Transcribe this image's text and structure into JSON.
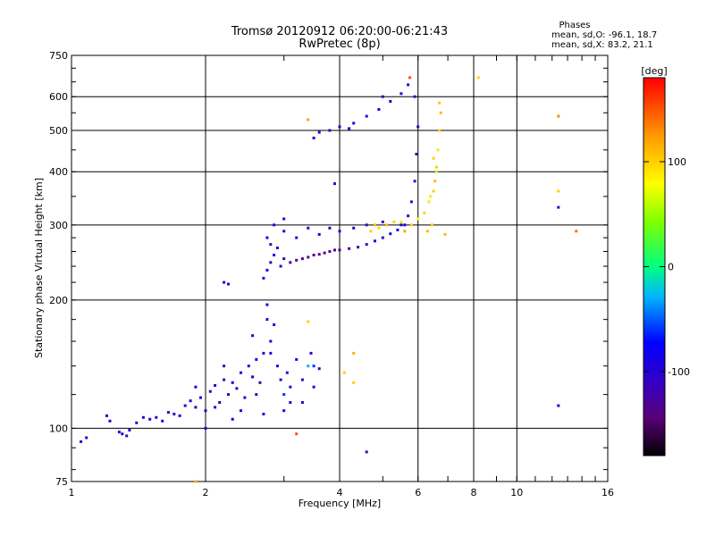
{
  "header": {
    "title_line1": "Tromsø 20120912 06:20:00-06:21:43",
    "title_line2": "RwPretec (8p)"
  },
  "stats": {
    "heading": "Phases",
    "line_o": "mean, sd,O: -96.1, 18.7",
    "line_x": "mean, sd,X: 83.2, 21.1"
  },
  "colorbar": {
    "unit": "[deg]",
    "ticks": [
      {
        "value": 100,
        "label": "100"
      },
      {
        "value": 0,
        "label": "0"
      },
      {
        "value": -100,
        "label": "-100"
      }
    ],
    "min": -180,
    "max": 180
  },
  "chart_data": {
    "type": "scatter",
    "title": "Tromsø 20120912 06:20:00-06:21:43",
    "subtitle": "RwPretec (8p)",
    "xlabel": "Frequency [MHz]",
    "ylabel": "Stationary phase Virtual Height [km]",
    "xscale": "log",
    "yscale": "log",
    "xlim": [
      1,
      16
    ],
    "ylim": [
      75,
      750
    ],
    "grid": true,
    "x_ticks": [
      {
        "value": 1,
        "label": "1"
      },
      {
        "value": 2,
        "label": "2"
      },
      {
        "value": 4,
        "label": "4"
      },
      {
        "value": 6,
        "label": "6"
      },
      {
        "value": 8,
        "label": "8"
      },
      {
        "value": 10,
        "label": "10"
      },
      {
        "value": 16,
        "label": "16"
      }
    ],
    "y_ticks": [
      {
        "value": 75,
        "label": "75"
      },
      {
        "value": 100,
        "label": "100"
      },
      {
        "value": 200,
        "label": "200"
      },
      {
        "value": 300,
        "label": "300"
      },
      {
        "value": 400,
        "label": "400"
      },
      {
        "value": 500,
        "label": "500"
      },
      {
        "value": 600,
        "label": "600"
      },
      {
        "value": 750,
        "label": "750"
      }
    ],
    "color_axis": {
      "label": "[deg]",
      "range": [
        -180,
        180
      ]
    },
    "series": [
      {
        "points_f_h_phase": [
          [
            1.05,
            93,
            -110
          ],
          [
            1.08,
            95,
            -100
          ],
          [
            1.2,
            107,
            -105
          ],
          [
            1.22,
            104,
            -95
          ],
          [
            1.28,
            98,
            -110
          ],
          [
            1.3,
            97,
            -100
          ],
          [
            1.33,
            96,
            -115
          ],
          [
            1.35,
            99,
            -105
          ],
          [
            1.4,
            103,
            -100
          ],
          [
            1.45,
            106,
            -110
          ],
          [
            1.5,
            105,
            -95
          ],
          [
            1.55,
            106,
            -100
          ],
          [
            1.6,
            104,
            -105
          ],
          [
            1.65,
            109,
            -110
          ],
          [
            1.7,
            108,
            -100
          ],
          [
            1.75,
            107,
            -95
          ],
          [
            1.8,
            113,
            -105
          ],
          [
            1.85,
            116,
            -100
          ],
          [
            1.9,
            112,
            -110
          ],
          [
            1.95,
            118,
            -90
          ],
          [
            2.0,
            110,
            -105
          ],
          [
            2.05,
            122,
            -100
          ],
          [
            2.1,
            126,
            -95
          ],
          [
            2.15,
            115,
            -110
          ],
          [
            2.2,
            130,
            -100
          ],
          [
            2.25,
            120,
            -105
          ],
          [
            2.3,
            128,
            -90
          ],
          [
            2.35,
            124,
            -100
          ],
          [
            2.4,
            135,
            -110
          ],
          [
            2.45,
            118,
            -95
          ],
          [
            2.5,
            140,
            -100
          ],
          [
            2.55,
            132,
            -80
          ],
          [
            2.6,
            145,
            -100
          ],
          [
            2.65,
            128,
            -105
          ],
          [
            2.7,
            150,
            -110
          ],
          [
            2.75,
            180,
            -100
          ],
          [
            2.8,
            160,
            -95
          ],
          [
            2.85,
            175,
            -105
          ],
          [
            2.9,
            140,
            -90
          ],
          [
            2.95,
            130,
            -100
          ],
          [
            3.0,
            120,
            -60
          ],
          [
            3.05,
            135,
            -100
          ],
          [
            3.1,
            115,
            -105
          ],
          [
            3.2,
            145,
            -95
          ],
          [
            3.3,
            130,
            -100
          ],
          [
            3.4,
            140,
            -30
          ],
          [
            3.5,
            125,
            -100
          ],
          [
            3.6,
            138,
            -110
          ],
          [
            1.9,
            125,
            -90
          ],
          [
            2.1,
            112,
            -100
          ],
          [
            2.2,
            140,
            -110
          ],
          [
            2.4,
            110,
            -95
          ],
          [
            2.6,
            120,
            -100
          ],
          [
            2.8,
            150,
            -105
          ],
          [
            3.0,
            110,
            -90
          ],
          [
            3.3,
            115,
            -100
          ],
          [
            2.0,
            100,
            -100
          ],
          [
            2.3,
            105,
            -90
          ],
          [
            2.7,
            108,
            -100
          ],
          [
            3.1,
            125,
            -110
          ],
          [
            3.5,
            140,
            -60
          ],
          [
            3.45,
            150,
            -100
          ],
          [
            2.55,
            165,
            -100
          ],
          [
            2.75,
            195,
            -95
          ]
        ]
      },
      {
        "points_f_h_phase": [
          [
            2.7,
            225,
            -110
          ],
          [
            2.75,
            235,
            -100
          ],
          [
            2.8,
            245,
            -115
          ],
          [
            2.85,
            255,
            -105
          ],
          [
            2.9,
            265,
            -100
          ],
          [
            2.95,
            240,
            -110
          ],
          [
            3.0,
            250,
            -120
          ],
          [
            3.1,
            245,
            -130
          ],
          [
            3.2,
            248,
            -140
          ],
          [
            3.3,
            250,
            -135
          ],
          [
            3.4,
            252,
            -140
          ],
          [
            3.5,
            255,
            -130
          ],
          [
            3.6,
            256,
            -140
          ],
          [
            3.7,
            258,
            -135
          ],
          [
            3.8,
            260,
            -140
          ],
          [
            3.9,
            262,
            -135
          ],
          [
            4.0,
            262,
            -130
          ],
          [
            4.2,
            264,
            -130
          ],
          [
            4.4,
            266,
            -120
          ],
          [
            4.6,
            270,
            -110
          ],
          [
            4.8,
            275,
            -100
          ],
          [
            5.0,
            280,
            -100
          ],
          [
            5.2,
            286,
            -95
          ],
          [
            5.4,
            292,
            -90
          ],
          [
            5.6,
            300,
            -100
          ],
          [
            5.7,
            315,
            -100
          ],
          [
            5.8,
            340,
            -110
          ],
          [
            5.9,
            380,
            -100
          ],
          [
            5.95,
            440,
            -110
          ],
          [
            6.0,
            510,
            -105
          ],
          [
            2.75,
            280,
            -100
          ],
          [
            2.85,
            300,
            -95
          ],
          [
            3.0,
            290,
            -100
          ],
          [
            3.2,
            280,
            -105
          ],
          [
            3.4,
            295,
            -100
          ],
          [
            3.6,
            285,
            -90
          ],
          [
            3.8,
            295,
            -100
          ],
          [
            4.0,
            290,
            -95
          ],
          [
            4.3,
            295,
            -100
          ],
          [
            4.6,
            300,
            -105
          ],
          [
            5.0,
            305,
            -100
          ],
          [
            5.5,
            300,
            -90
          ],
          [
            3.0,
            310,
            -100
          ],
          [
            2.8,
            270,
            -110
          ]
        ]
      },
      {
        "points_f_h_phase": [
          [
            3.5,
            480,
            -100
          ],
          [
            3.6,
            495,
            -105
          ],
          [
            3.8,
            500,
            -100
          ],
          [
            4.0,
            510,
            -95
          ],
          [
            4.3,
            520,
            -100
          ],
          [
            4.6,
            540,
            -105
          ],
          [
            4.9,
            560,
            -100
          ],
          [
            5.2,
            585,
            -95
          ],
          [
            5.5,
            610,
            -100
          ],
          [
            5.7,
            640,
            -110
          ],
          [
            5.9,
            600,
            -100
          ],
          [
            5.0,
            600,
            -100
          ],
          [
            4.2,
            505,
            -100
          ],
          [
            3.9,
            375,
            -100
          ]
        ]
      },
      {
        "points_f_h_phase": [
          [
            4.7,
            290,
            100
          ],
          [
            4.9,
            295,
            95
          ],
          [
            5.1,
            300,
            110
          ],
          [
            5.3,
            305,
            100
          ],
          [
            5.5,
            305,
            90
          ],
          [
            5.8,
            300,
            100
          ],
          [
            6.0,
            310,
            80
          ],
          [
            6.2,
            320,
            100
          ],
          [
            6.35,
            340,
            90
          ],
          [
            6.5,
            360,
            100
          ],
          [
            6.55,
            380,
            110
          ],
          [
            6.6,
            410,
            100
          ],
          [
            6.65,
            450,
            90
          ],
          [
            6.7,
            500,
            100
          ],
          [
            6.75,
            550,
            110
          ],
          [
            6.7,
            580,
            105
          ],
          [
            6.45,
            300,
            100
          ],
          [
            6.3,
            290,
            110
          ],
          [
            6.6,
            400,
            60
          ],
          [
            6.5,
            430,
            100
          ],
          [
            6.4,
            350,
            90
          ],
          [
            5.6,
            290,
            120
          ],
          [
            4.8,
            300,
            110
          ]
        ]
      },
      {
        "points_f_h_phase": [
          [
            5.75,
            665,
            150
          ],
          [
            3.4,
            530,
            120
          ],
          [
            6.9,
            285,
            110
          ],
          [
            8.2,
            665,
            100
          ],
          [
            4.3,
            150,
            115
          ],
          [
            3.4,
            178,
            100
          ],
          [
            4.1,
            135,
            100
          ],
          [
            2.2,
            220,
            -100
          ],
          [
            2.25,
            218,
            -100
          ],
          [
            3.2,
            97,
            150
          ],
          [
            4.6,
            88,
            -110
          ],
          [
            12.4,
            540,
            130
          ],
          [
            12.4,
            360,
            100
          ],
          [
            12.4,
            330,
            -110
          ],
          [
            12.4,
            113,
            -100
          ],
          [
            13.6,
            290,
            140
          ],
          [
            1.9,
            75,
            110
          ],
          [
            4.3,
            128,
            100
          ]
        ]
      }
    ]
  }
}
